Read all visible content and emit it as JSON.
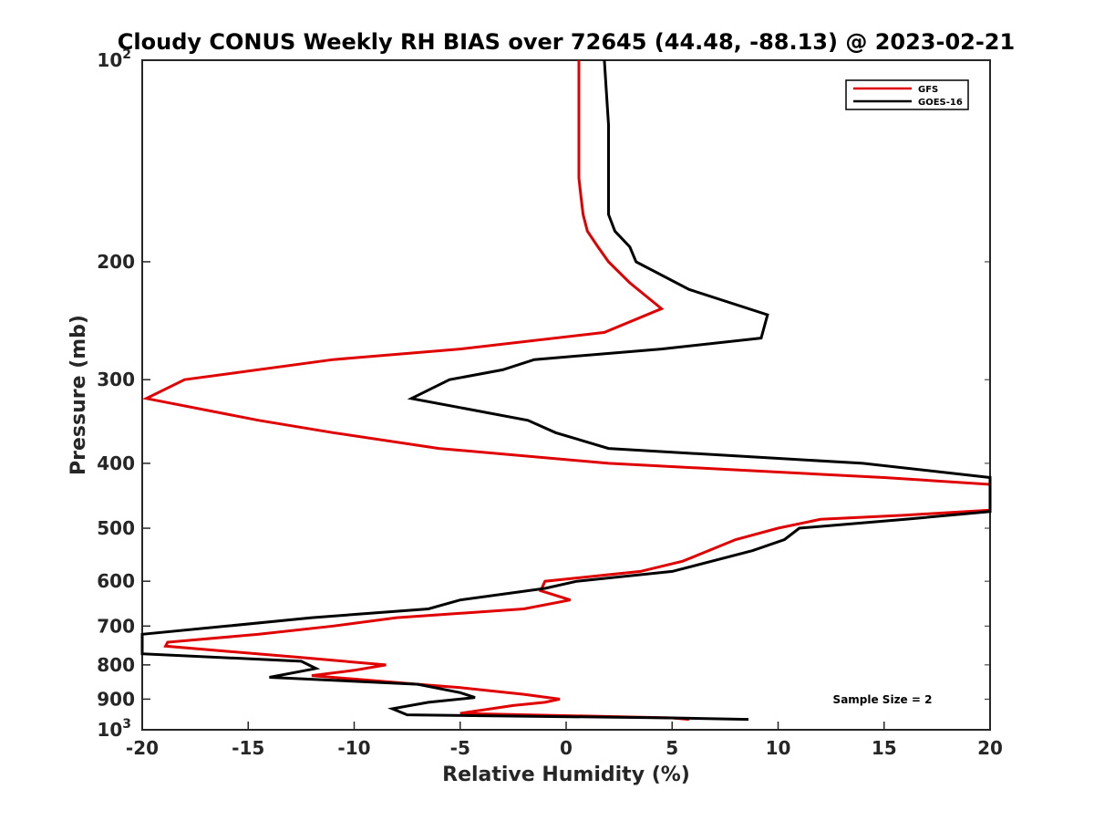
{
  "chart_data": {
    "type": "line",
    "title": "Cloudy CONUS Weekly RH BIAS over 72645 (44.48, -88.13) @ 2023-02-21",
    "xlabel": "Relative Humidity (%)",
    "ylabel": "Pressure (mb)",
    "xlim": [
      -20,
      20
    ],
    "ylim": [
      100,
      1000
    ],
    "y_scale": "log",
    "y_reversed": true,
    "grid": false,
    "legend_position": "top-right",
    "x_ticks": [
      -20,
      -15,
      -10,
      -5,
      0,
      5,
      10,
      15,
      20
    ],
    "y_ticks": [
      {
        "value": 100,
        "label": "10",
        "sup": "2"
      },
      {
        "value": 200,
        "label": "200"
      },
      {
        "value": 300,
        "label": "300"
      },
      {
        "value": 400,
        "label": "400"
      },
      {
        "value": 500,
        "label": "500"
      },
      {
        "value": 600,
        "label": "600"
      },
      {
        "value": 700,
        "label": "700"
      },
      {
        "value": 800,
        "label": "800"
      },
      {
        "value": 900,
        "label": "900"
      },
      {
        "value": 1000,
        "label": "10",
        "sup": "3"
      }
    ],
    "series": [
      {
        "name": "GFS",
        "color": "#e00000",
        "points": [
          [
            0.6,
            100
          ],
          [
            0.6,
            125
          ],
          [
            0.6,
            150
          ],
          [
            0.7,
            160
          ],
          [
            0.8,
            170
          ],
          [
            1.0,
            180
          ],
          [
            1.5,
            190
          ],
          [
            2.0,
            200
          ],
          [
            3.0,
            215
          ],
          [
            4.5,
            235
          ],
          [
            1.8,
            255
          ],
          [
            -5.0,
            270
          ],
          [
            -11.0,
            280
          ],
          [
            -18.0,
            300
          ],
          [
            -19.8,
            320
          ],
          [
            -14.5,
            345
          ],
          [
            -11.0,
            360
          ],
          [
            -6.0,
            380
          ],
          [
            2.0,
            400
          ],
          [
            15.0,
            420
          ],
          [
            20.0,
            430
          ],
          [
            20.0,
            470
          ],
          [
            16.0,
            478
          ],
          [
            12.0,
            485
          ],
          [
            10.0,
            500
          ],
          [
            8.0,
            520
          ],
          [
            5.5,
            560
          ],
          [
            3.5,
            580
          ],
          [
            -1.0,
            600
          ],
          [
            -1.2,
            620
          ],
          [
            0.2,
            640
          ],
          [
            -2.0,
            660
          ],
          [
            -8.0,
            680
          ],
          [
            -11.0,
            700
          ],
          [
            -14.5,
            720
          ],
          [
            -18.8,
            740
          ],
          [
            -18.9,
            750
          ],
          [
            -12.5,
            780
          ],
          [
            -8.5,
            800
          ],
          [
            -10.0,
            815
          ],
          [
            -12.0,
            830
          ],
          [
            -7.0,
            855
          ],
          [
            -5.0,
            865
          ],
          [
            -2.0,
            885
          ],
          [
            -0.3,
            900
          ],
          [
            -1.0,
            910
          ],
          [
            -2.5,
            920
          ],
          [
            -5.0,
            945
          ],
          [
            5.0,
            960
          ],
          [
            5.8,
            965
          ]
        ]
      },
      {
        "name": "GOES-16",
        "color": "#000000",
        "points": [
          [
            1.8,
            100
          ],
          [
            2.0,
            125
          ],
          [
            2.0,
            150
          ],
          [
            2.0,
            170
          ],
          [
            2.3,
            180
          ],
          [
            3.0,
            190
          ],
          [
            3.3,
            200
          ],
          [
            5.8,
            220
          ],
          [
            9.5,
            240
          ],
          [
            9.2,
            260
          ],
          [
            4.5,
            270
          ],
          [
            -1.5,
            280
          ],
          [
            -3.0,
            290
          ],
          [
            -5.5,
            300
          ],
          [
            -7.3,
            320
          ],
          [
            -1.8,
            345
          ],
          [
            -0.5,
            360
          ],
          [
            2.0,
            380
          ],
          [
            8.0,
            390
          ],
          [
            14.0,
            400
          ],
          [
            20.0,
            420
          ],
          [
            20.0,
            472
          ],
          [
            16.0,
            485
          ],
          [
            11.0,
            500
          ],
          [
            10.3,
            520
          ],
          [
            8.8,
            540
          ],
          [
            5.0,
            580
          ],
          [
            0.5,
            600
          ],
          [
            -1.0,
            615
          ],
          [
            -5.0,
            640
          ],
          [
            -6.5,
            660
          ],
          [
            -12.0,
            680
          ],
          [
            -16.0,
            700
          ],
          [
            -20.0,
            720
          ],
          [
            -20.0,
            770
          ],
          [
            -12.5,
            790
          ],
          [
            -11.8,
            810
          ],
          [
            -14.0,
            835
          ],
          [
            -7.0,
            855
          ],
          [
            -5.0,
            880
          ],
          [
            -4.3,
            895
          ],
          [
            -6.5,
            910
          ],
          [
            -8.2,
            930
          ],
          [
            -7.5,
            950
          ],
          [
            5.0,
            960
          ],
          [
            8.6,
            965
          ]
        ]
      }
    ],
    "annotation": "Sample Size = 2"
  }
}
